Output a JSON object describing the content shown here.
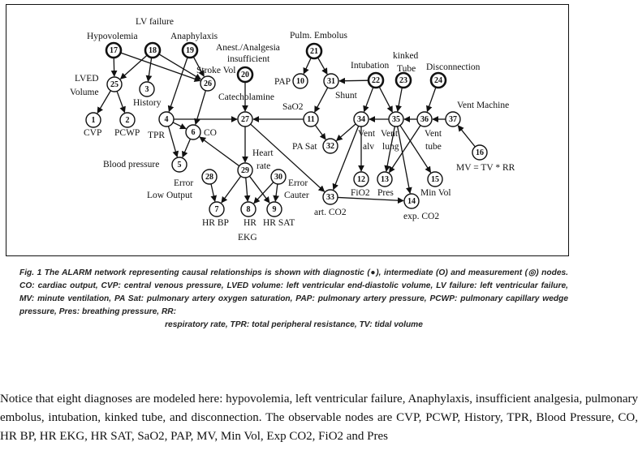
{
  "figure": {
    "nodes": [
      {
        "id": "17",
        "label": "Hypovolemia"
      },
      {
        "id": "18",
        "label": "LV failure"
      },
      {
        "id": "19",
        "label": "Anaphylaxis"
      },
      {
        "id": "20",
        "label": "Anest./Analgesia insufficient"
      },
      {
        "id": "21",
        "label": "Pulm. Embolus"
      },
      {
        "id": "22",
        "label": "Intubation"
      },
      {
        "id": "23",
        "label": "kinked Tube"
      },
      {
        "id": "24",
        "label": "Disconnection"
      },
      {
        "id": "25",
        "label": "LVED Volume"
      },
      {
        "id": "26",
        "label": "Stroke Vol"
      },
      {
        "id": "3",
        "label": "History"
      },
      {
        "id": "1",
        "label": "CVP"
      },
      {
        "id": "2",
        "label": "PCWP"
      },
      {
        "id": "4",
        "label": "TPR"
      },
      {
        "id": "6",
        "label": "CO"
      },
      {
        "id": "5",
        "label": "Blood pressure"
      },
      {
        "id": "27",
        "label": "Catecholamine"
      },
      {
        "id": "10",
        "label": "PAP"
      },
      {
        "id": "31",
        "label": "Shunt"
      },
      {
        "id": "11",
        "label": "SaO2"
      },
      {
        "id": "32",
        "label": "PA Sat"
      },
      {
        "id": "34",
        "label": "Vent alv"
      },
      {
        "id": "35",
        "label": "Vent lung"
      },
      {
        "id": "36",
        "label": "Vent tube"
      },
      {
        "id": "37",
        "label": "Vent Machine"
      },
      {
        "id": "16",
        "label": "MV = TV * RR"
      },
      {
        "id": "29",
        "label": "Heart rate"
      },
      {
        "id": "28",
        "label": "Error Low Output"
      },
      {
        "id": "30",
        "label": "Error Cauter"
      },
      {
        "id": "7",
        "label": "HR BP"
      },
      {
        "id": "8",
        "label": "HR EKG"
      },
      {
        "id": "9",
        "label": "HR SAT"
      },
      {
        "id": "12",
        "label": "FiO2"
      },
      {
        "id": "13",
        "label": "Pres"
      },
      {
        "id": "15",
        "label": "Min Vol"
      },
      {
        "id": "33",
        "label": "art. CO2"
      },
      {
        "id": "14",
        "label": "exp. CO2"
      }
    ],
    "edges": [
      [
        "17",
        "25"
      ],
      [
        "18",
        "25"
      ],
      [
        "18",
        "3"
      ],
      [
        "18",
        "26"
      ],
      [
        "19",
        "4"
      ],
      [
        "19",
        "26"
      ],
      [
        "17",
        "26"
      ],
      [
        "25",
        "1"
      ],
      [
        "25",
        "2"
      ],
      [
        "26",
        "6"
      ],
      [
        "4",
        "6"
      ],
      [
        "4",
        "5"
      ],
      [
        "6",
        "5"
      ],
      [
        "4",
        "27"
      ],
      [
        "20",
        "27"
      ],
      [
        "21",
        "10"
      ],
      [
        "21",
        "31"
      ],
      [
        "22",
        "31"
      ],
      [
        "22",
        "34"
      ],
      [
        "22",
        "35"
      ],
      [
        "23",
        "35"
      ],
      [
        "24",
        "36"
      ],
      [
        "31",
        "11"
      ],
      [
        "11",
        "27"
      ],
      [
        "11",
        "32"
      ],
      [
        "34",
        "32"
      ],
      [
        "34",
        "33"
      ],
      [
        "34",
        "12"
      ],
      [
        "35",
        "34"
      ],
      [
        "35",
        "13"
      ],
      [
        "35",
        "14"
      ],
      [
        "35",
        "15"
      ],
      [
        "36",
        "35"
      ],
      [
        "36",
        "13"
      ],
      [
        "37",
        "36"
      ],
      [
        "16",
        "37"
      ],
      [
        "27",
        "29"
      ],
      [
        "29",
        "6"
      ],
      [
        "29",
        "7"
      ],
      [
        "29",
        "8"
      ],
      [
        "29",
        "9"
      ],
      [
        "28",
        "7"
      ],
      [
        "30",
        "8"
      ],
      [
        "30",
        "9"
      ],
      [
        "27",
        "33"
      ],
      [
        "33",
        "14"
      ]
    ]
  },
  "caption": {
    "main": "Fig. 1 The ALARM network representing causal relationships is shown with diagnostic (●), intermediate (O) and measurement (◎) nodes. CO: cardiac output, CVP: central venous pressure, LVED volume: left ventricular end-diastolic volume, LV failure: left ventricular failure, MV: minute ventilation, PA Sat: pulmonary artery oxygen saturation, PAP: pulmonary artery pressure, PCWP: pulmonary capillary wedge pressure, Pres: breathing pressure, RR:",
    "last": "respiratory rate, TPR: total peripheral resistance, TV: tidal volume"
  },
  "body_text": "Notice that eight diagnoses are modeled here: hypovolemia, left ventricular failure, Anaphylaxis, insufficient analgesia, pulmonary embolus, intubation, kinked tube, and disconnection. The observable nodes are CVP, PCWP, History, TPR, Blood Pressure, CO, HR BP, HR EKG, HR SAT, SaO2, PAP, MV, Min Vol, Exp CO2, FiO2 and Pres"
}
